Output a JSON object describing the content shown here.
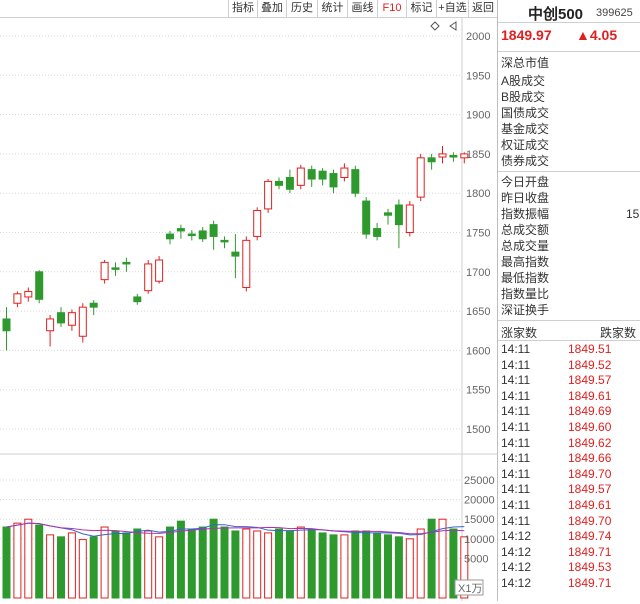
{
  "toolbar": {
    "buttons": [
      "指标",
      "叠加",
      "历史",
      "统计",
      "画线",
      "F10",
      "标记",
      "+自选",
      "返回"
    ]
  },
  "chart": {
    "price_axis": [
      "2000",
      "1950",
      "1900",
      "1850",
      "1800",
      "1750",
      "1700",
      "1650",
      "1600",
      "1550",
      "1500"
    ],
    "volume_axis": [
      "25000",
      "20000",
      "15000",
      "10000",
      "5000"
    ],
    "volume_unit": "X1万",
    "colors": {
      "up": "#e02020",
      "down": "#2e9a2e",
      "ma1": "#3366cc",
      "ma2": "#b030b0"
    }
  },
  "quote": {
    "name": "中创500",
    "code": "399625",
    "price": "1849.97",
    "change": "▲4.05"
  },
  "stats": [
    "深总市值",
    "A股成交",
    "B股成交",
    "国债成交",
    "基金成交",
    "权证成交",
    "债券成交",
    "今日开盘",
    "昨日收盘",
    "指数振幅",
    "总成交额",
    "总成交量",
    "最高指数",
    "最低指数",
    "指数量比",
    "深证换手"
  ],
  "amplitude_value": "15",
  "ticks_header": {
    "left": "涨家数",
    "right": "跌家数"
  },
  "ticks": [
    {
      "time": "14:11",
      "price": "1849.51"
    },
    {
      "time": "14:11",
      "price": "1849.52"
    },
    {
      "time": "14:11",
      "price": "1849.57"
    },
    {
      "time": "14:11",
      "price": "1849.61"
    },
    {
      "time": "14:11",
      "price": "1849.69"
    },
    {
      "time": "14:11",
      "price": "1849.60"
    },
    {
      "time": "14:11",
      "price": "1849.62"
    },
    {
      "time": "14:11",
      "price": "1849.66"
    },
    {
      "time": "14:11",
      "price": "1849.70"
    },
    {
      "time": "14:11",
      "price": "1849.57"
    },
    {
      "time": "14:11",
      "price": "1849.61"
    },
    {
      "time": "14:11",
      "price": "1849.70"
    },
    {
      "time": "14:12",
      "price": "1849.74"
    },
    {
      "time": "14:12",
      "price": "1849.71"
    },
    {
      "time": "14:12",
      "price": "1849.53"
    },
    {
      "time": "14:12",
      "price": "1849.71"
    }
  ]
}
